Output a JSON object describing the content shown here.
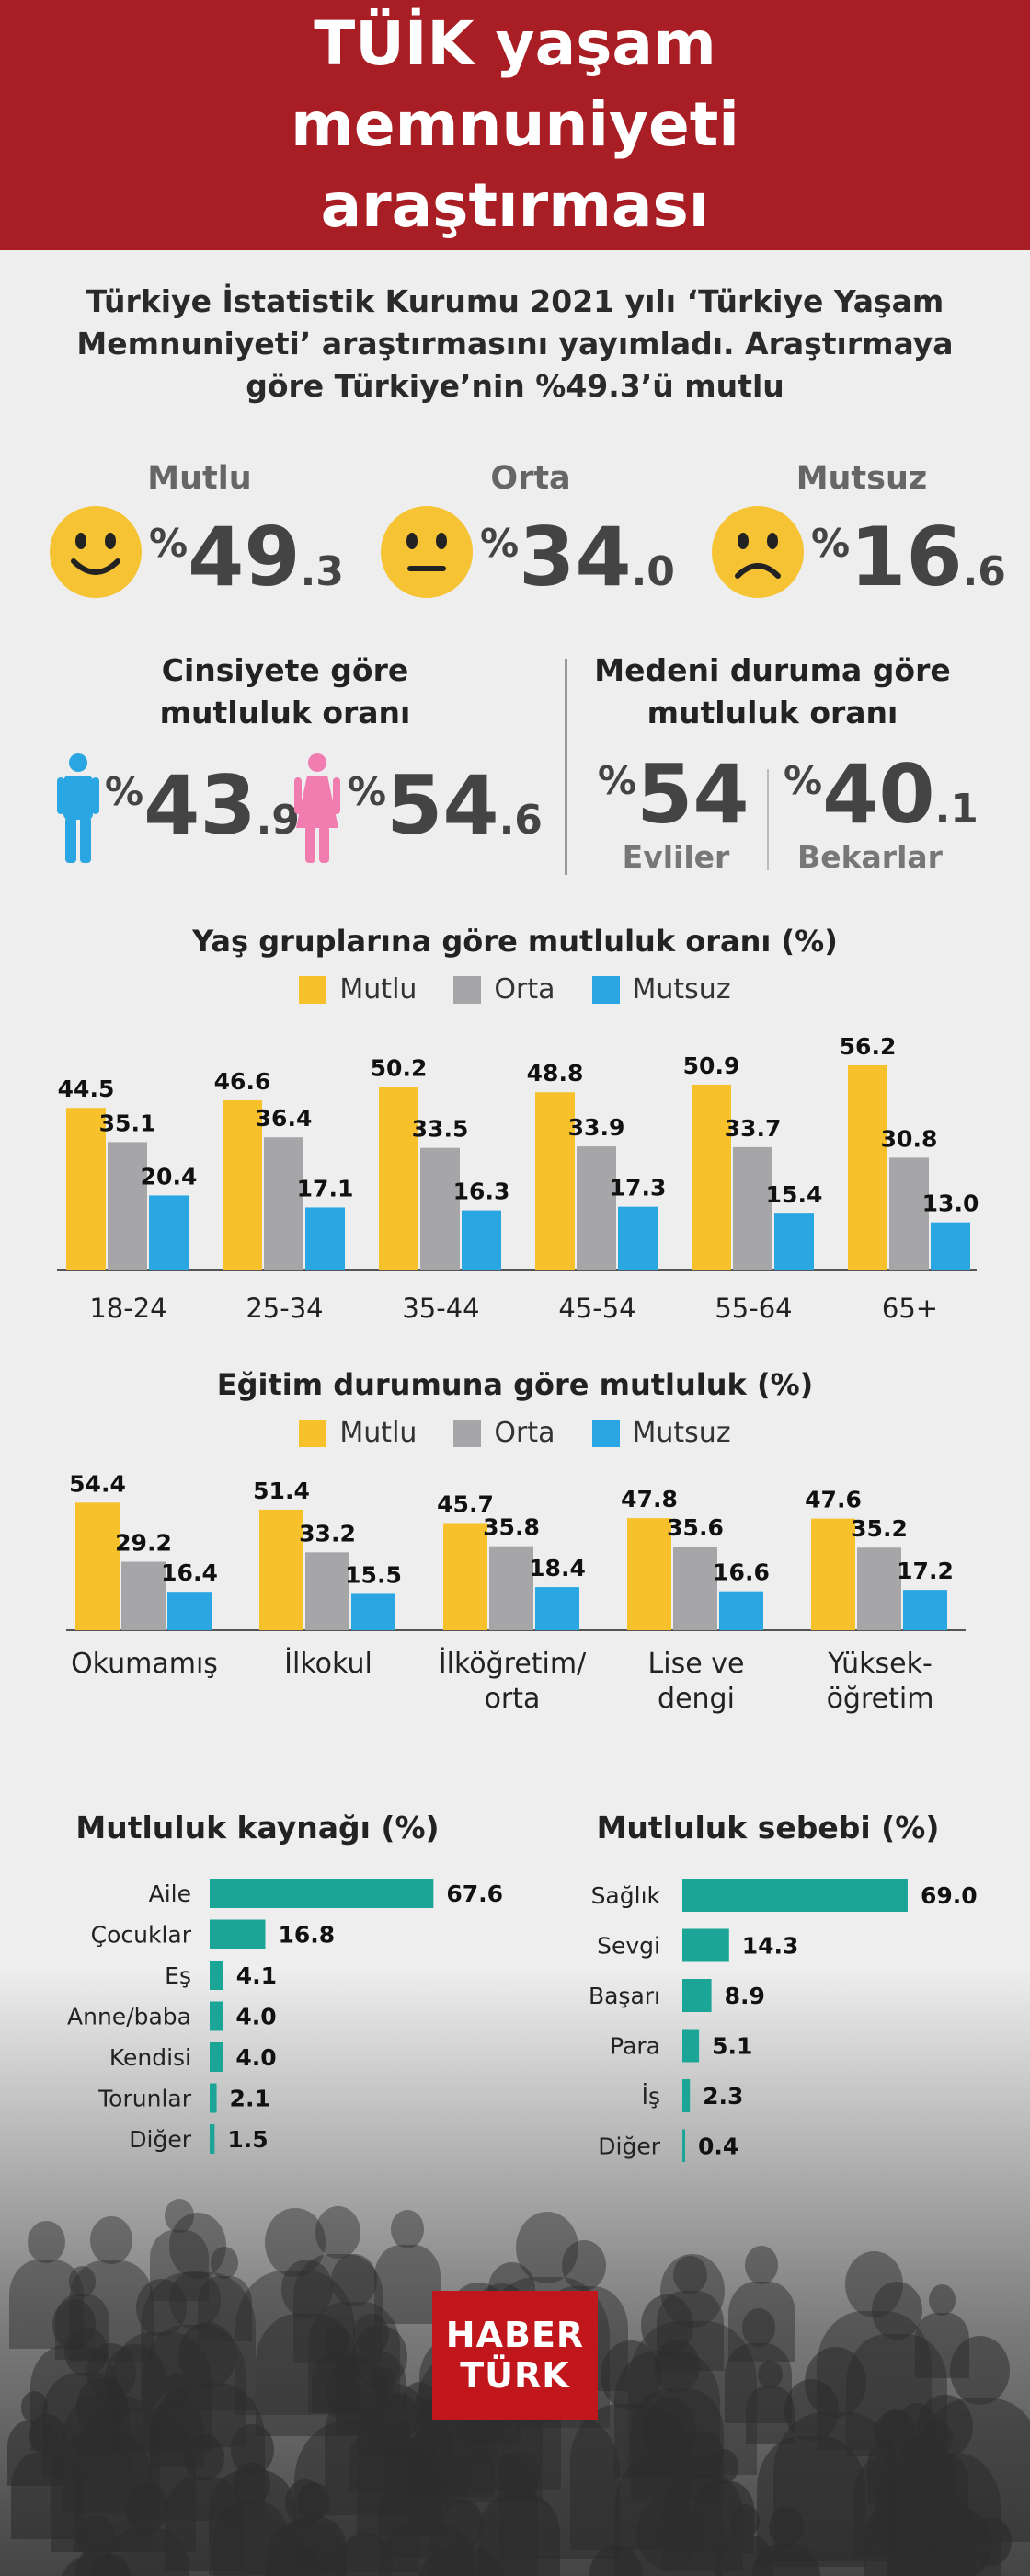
{
  "header": {
    "title": "TÜİK yaşam memnuniyeti araştırması"
  },
  "intro": {
    "text": "Türkiye İstatistik Kurumu 2021 yılı ‘Türkiye Yaşam Memnuniyeti’ araştırmasını yayımladı. Araştırmaya göre Türkiye’nin %49.3’ü mutlu"
  },
  "overall": [
    {
      "label": "Mutlu",
      "int": "49",
      "dec": ".3",
      "icon": "happy-face-icon"
    },
    {
      "label": "Orta",
      "int": "34",
      "dec": ".0",
      "icon": "neutral-face-icon"
    },
    {
      "label": "Mutsuz",
      "int": "16",
      "dec": ".6",
      "icon": "sad-face-icon"
    }
  ],
  "percent_sign": "%",
  "gender": {
    "title": "Cinsiyete göre mutluluk oranı",
    "male": {
      "int": "43",
      "dec": ".9",
      "icon": "male-icon"
    },
    "female": {
      "int": "54",
      "dec": ".6",
      "icon": "female-icon"
    }
  },
  "marital": {
    "title": "Medeni duruma göre mutluluk oranı",
    "married": {
      "int": "54",
      "dec": "",
      "label": "Evliler"
    },
    "single": {
      "int": "40",
      "dec": ".1",
      "label": "Bekarlar"
    }
  },
  "colors": {
    "mutlu": "#f6c12b",
    "orta": "#a6a6a8",
    "mutsuz": "#2aa6e3",
    "teal": "#1aa596",
    "red": "#a91e24"
  },
  "legend": [
    "Mutlu",
    "Orta",
    "Mutsuz"
  ],
  "chart_data": [
    {
      "type": "bar",
      "title": "Yaş gruplarına göre mutluluk oranı (%)",
      "categories": [
        "18-24",
        "25-34",
        "35-44",
        "45-54",
        "55-64",
        "65+"
      ],
      "series": [
        {
          "name": "Mutlu",
          "values": [
            44.5,
            46.6,
            50.2,
            48.8,
            50.9,
            56.2
          ]
        },
        {
          "name": "Orta",
          "values": [
            35.1,
            36.4,
            33.5,
            33.9,
            33.7,
            30.8
          ]
        },
        {
          "name": "Mutsuz",
          "values": [
            20.4,
            17.1,
            16.3,
            17.3,
            15.4,
            13.0
          ]
        }
      ],
      "value_labels": [
        [
          "44.5",
          "46.6",
          "50.2",
          "48.8",
          "50.9",
          "56.2"
        ],
        [
          "35.1",
          "36.4",
          "33.5",
          "33.9",
          "33.7",
          "30.8"
        ],
        [
          "20.4",
          "17.1",
          "16.3",
          "17.3",
          "15.4",
          "13.0"
        ]
      ]
    },
    {
      "type": "bar",
      "title": "Eğitim durumuna göre mutluluk (%)",
      "categories": [
        [
          "Okumamış"
        ],
        [
          "İlkokul"
        ],
        [
          "İlköğretim/",
          "orta"
        ],
        [
          "Lise ve",
          "dengi"
        ],
        [
          "Yüksek-",
          "öğretim"
        ]
      ],
      "series": [
        {
          "name": "Mutlu",
          "values": [
            54.4,
            51.4,
            45.7,
            47.8,
            47.6
          ]
        },
        {
          "name": "Orta",
          "values": [
            29.2,
            33.2,
            35.8,
            35.6,
            35.2
          ]
        },
        {
          "name": "Mutsuz",
          "values": [
            16.4,
            15.5,
            18.4,
            16.6,
            17.2
          ]
        }
      ],
      "value_labels": [
        [
          "54.4",
          "51.4",
          "45.7",
          "47.8",
          "47.6"
        ],
        [
          "29.2",
          "33.2",
          "35.8",
          "35.6",
          "35.2"
        ],
        [
          "16.4",
          "15.5",
          "18.4",
          "16.6",
          "17.2"
        ]
      ]
    },
    {
      "type": "bar",
      "orientation": "horizontal",
      "title": "Mutluluk kaynağı (%)",
      "categories": [
        "Aile",
        "Çocuklar",
        "Eş",
        "Anne/baba",
        "Kendisi",
        "Torunlar",
        "Diğer"
      ],
      "values": [
        67.6,
        16.8,
        4.1,
        4.0,
        4.0,
        2.1,
        1.5
      ],
      "value_labels": [
        "67.6",
        "16.8",
        "4.1",
        "4.0",
        "4.0",
        "2.1",
        "1.5"
      ]
    },
    {
      "type": "bar",
      "orientation": "horizontal",
      "title": "Mutluluk sebebi (%)",
      "categories": [
        "Sağlık",
        "Sevgi",
        "Başarı",
        "Para",
        "İş",
        "Diğer"
      ],
      "values": [
        69.0,
        14.3,
        8.9,
        5.1,
        2.3,
        0.4
      ],
      "value_labels": [
        "69.0",
        "14.3",
        "8.9",
        "5.1",
        "2.3",
        "0.4"
      ]
    }
  ],
  "logo": {
    "line1": "HABER",
    "line2": "TÜRK"
  }
}
